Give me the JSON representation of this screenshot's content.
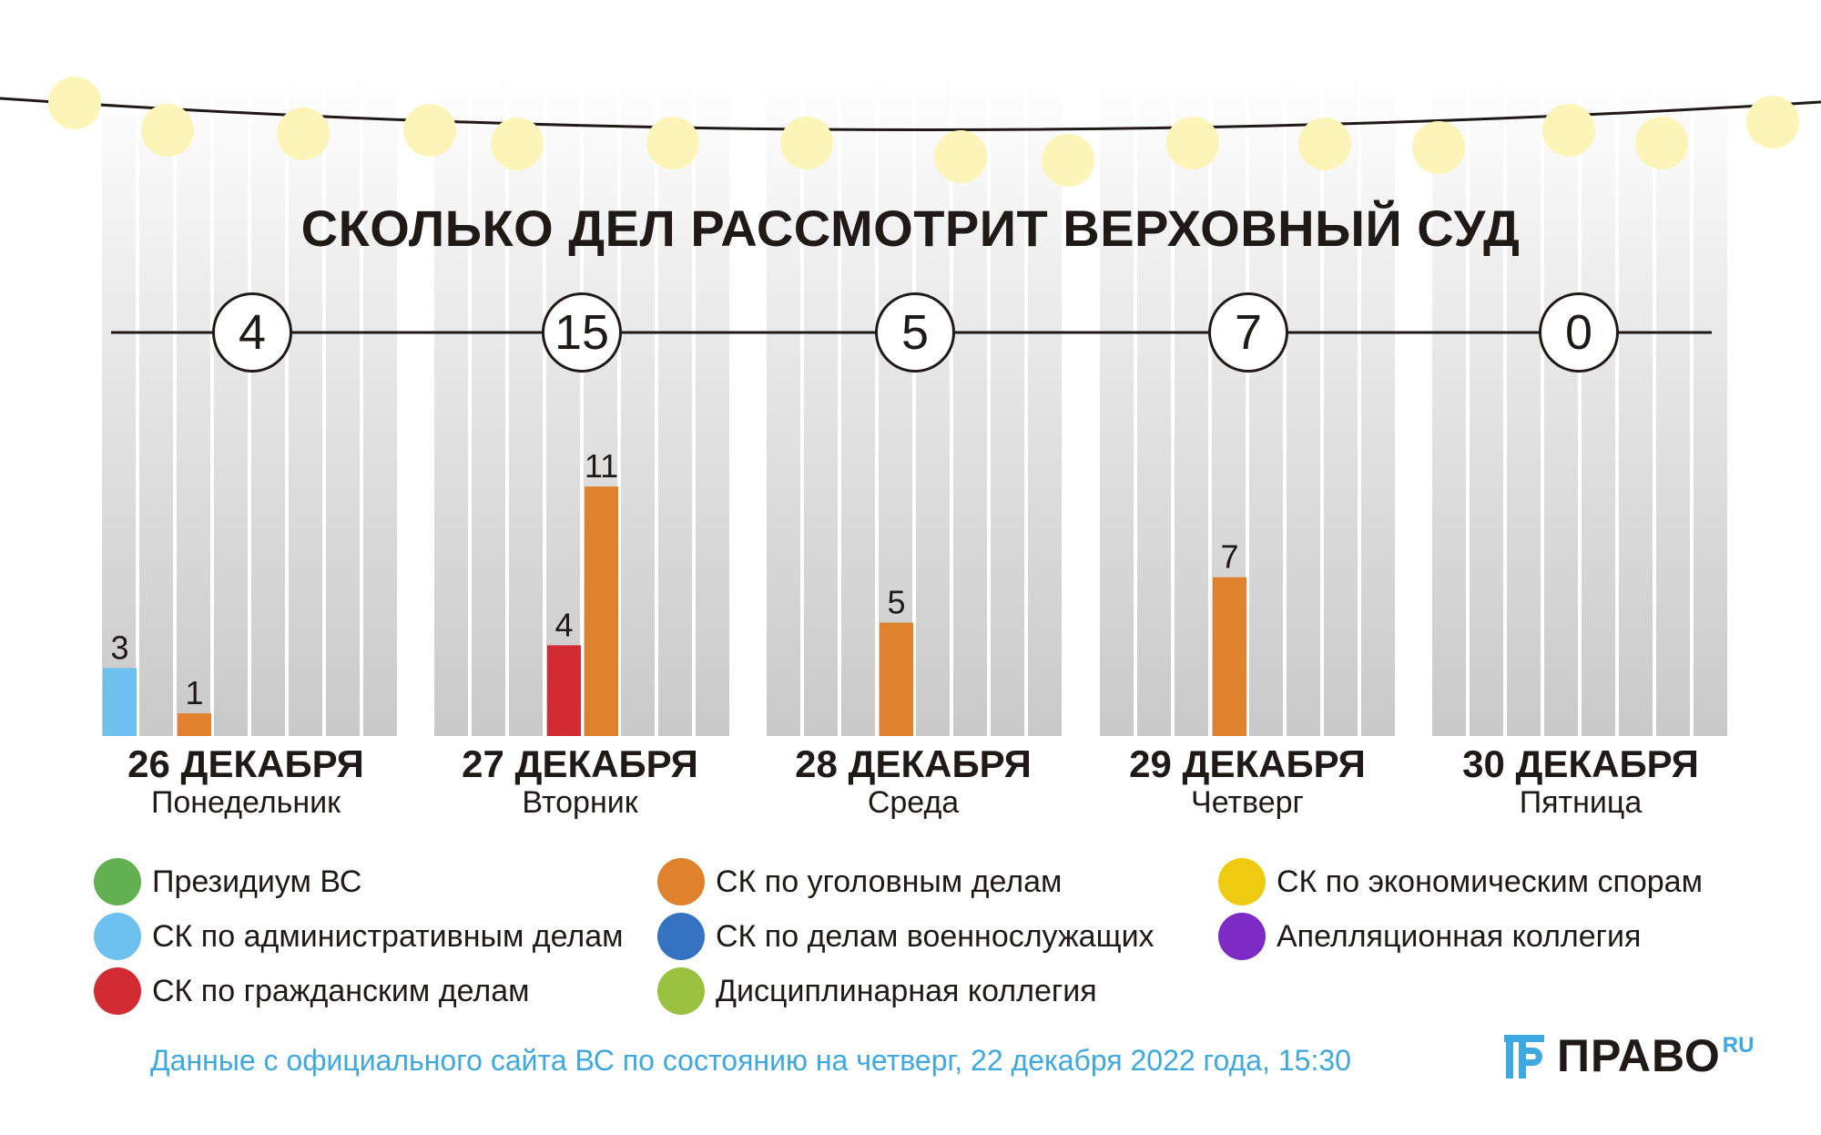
{
  "title": "СКОЛЬКО ДЕЛ РАССМОТРИТ ВЕРХОВНЫЙ СУД",
  "chart_data": {
    "type": "bar",
    "title": "СКОЛЬКО ДЕЛ РАССМОТРИТ ВЕРХОВНЫЙ СУД",
    "categories": [
      "26 ДЕКАБРЯ",
      "27 ДЕКАБРЯ",
      "28 ДЕКАБРЯ",
      "29 ДЕКАБРЯ",
      "30 ДЕКАБРЯ"
    ],
    "weekdays": [
      "Понедельник",
      "Вторник",
      "Среда",
      "Четверг",
      "Пятница"
    ],
    "totals": [
      "4",
      "15",
      "5",
      "7",
      "0"
    ],
    "series": [
      {
        "name": "Президиум ВС",
        "color": "#62b050",
        "values": [
          0,
          0,
          0,
          0,
          0
        ]
      },
      {
        "name": "СК по административным делам",
        "color": "#6ec1ef",
        "values": [
          3,
          0,
          0,
          0,
          0
        ]
      },
      {
        "name": "СК по гражданским делам",
        "color": "#d22b33",
        "values": [
          0,
          4,
          0,
          0,
          0
        ]
      },
      {
        "name": "СК по уголовным делам",
        "color": "#e0812d",
        "values": [
          1,
          11,
          5,
          7,
          0
        ]
      },
      {
        "name": "СК по делам военнослужащих",
        "color": "#3572bf",
        "values": [
          0,
          0,
          0,
          0,
          0
        ]
      },
      {
        "name": "Дисциплинарная коллегия",
        "color": "#99c03f",
        "values": [
          0,
          0,
          0,
          0,
          0
        ]
      },
      {
        "name": "СК по экономическим спорам",
        "color": "#eecb10",
        "values": [
          0,
          0,
          0,
          0,
          0
        ]
      },
      {
        "name": "Апелляционная коллегия",
        "color": "#7d2bc4",
        "values": [
          0,
          0,
          0,
          0,
          0
        ]
      }
    ],
    "ylim": [
      0,
      12
    ],
    "legend_position": "bottom"
  },
  "legend": [
    {
      "label": "Президиум ВС",
      "color": "#62b050"
    },
    {
      "label": "СК по административным делам",
      "color": "#6ec1ef"
    },
    {
      "label": "СК по гражданским делам",
      "color": "#d22b33"
    },
    {
      "label": "СК по уголовным делам",
      "color": "#e0812d"
    },
    {
      "label": "СК по делам военнослужащих",
      "color": "#3572bf"
    },
    {
      "label": "Дисциплинарная коллегия",
      "color": "#99c03f"
    },
    {
      "label": "СК по экономическим спорам",
      "color": "#eecb10"
    },
    {
      "label": "Апелляционная коллегия",
      "color": "#7d2bc4"
    }
  ],
  "source": "Данные с официального сайта ВС по состоянию на четверг, 22 декабря 2022 года, 15:30",
  "logo": {
    "text": "ПРАВО",
    "sup": "RU",
    "icon": "pravo-logo-icon",
    "accent": "#3ea8e0"
  },
  "decor": {
    "lights_color": "#fdf5b8",
    "lights_icon": "string-lights-icon"
  }
}
